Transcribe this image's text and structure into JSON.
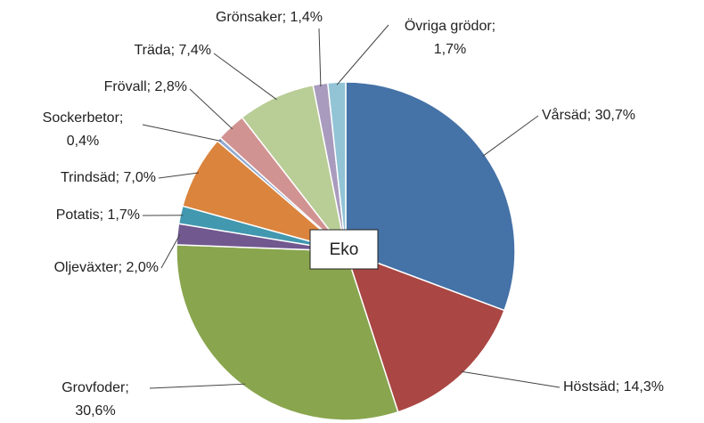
{
  "chart_data": {
    "type": "pie",
    "center_label": "Eko",
    "values": [
      30.7,
      14.3,
      30.6,
      2.0,
      1.7,
      7.0,
      0.4,
      2.8,
      7.4,
      1.4,
      1.7
    ],
    "value_labels": [
      [
        "Vårsäd; 30,7%"
      ],
      [
        "Höstsäd; 14,3%"
      ],
      [
        "Grovfoder;",
        "30,6%"
      ],
      [
        "Oljeväxter; 2,0%"
      ],
      [
        "Potatis; 1,7%"
      ],
      [
        "Trindsäd; 7,0%"
      ],
      [
        "Sockerbetor;",
        "0,4%"
      ],
      [
        "Frövall; 2,8%"
      ],
      [
        "Träda; 7,4%"
      ],
      [
        "Grönsaker; 1,4%"
      ],
      [
        "Övriga grödor;",
        "1,7%"
      ]
    ],
    "colors": [
      "#4572a7",
      "#aa4643",
      "#89a54e",
      "#71588f",
      "#4198af",
      "#db843d",
      "#93a9cf",
      "#d19392",
      "#b9cd96",
      "#a99bbd",
      "#92c4d6"
    ]
  }
}
